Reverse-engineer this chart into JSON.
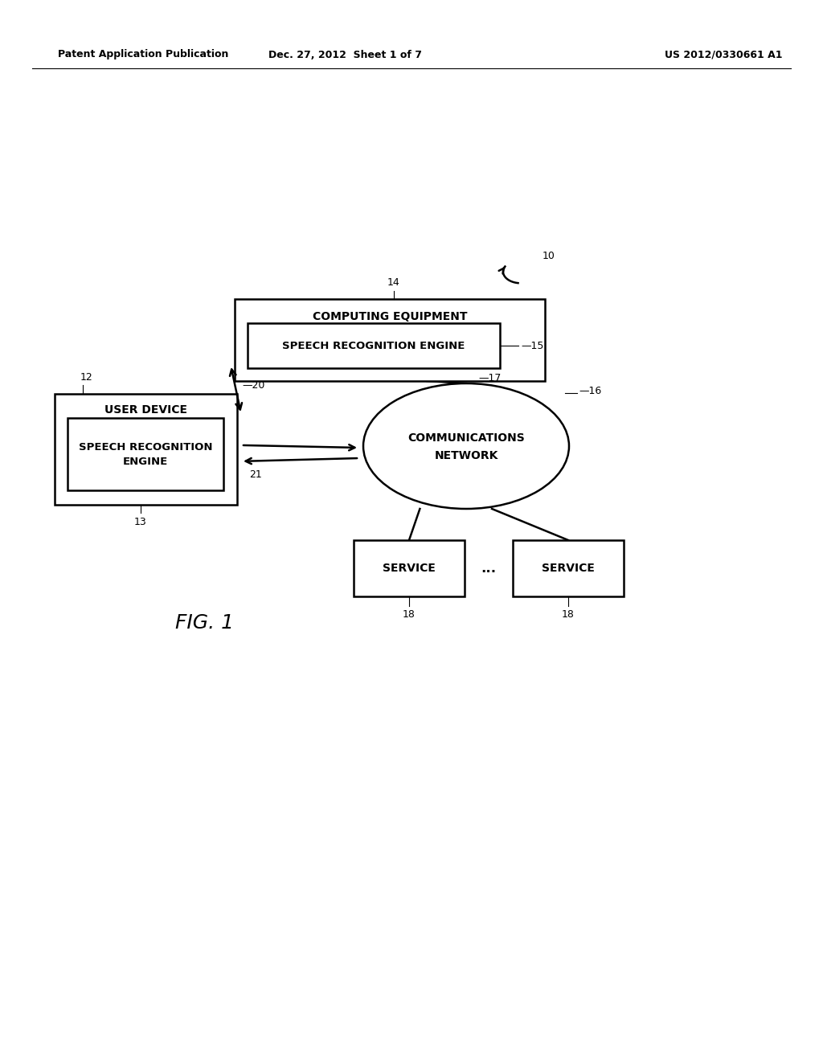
{
  "bg_color": "#ffffff",
  "text_color": "#000000",
  "header_left": "Patent Application Publication",
  "header_center": "Dec. 27, 2012  Sheet 1 of 7",
  "header_right": "US 2012/0330661 A1",
  "fig_label": "FIG. 1",
  "ref_10": "10",
  "ref_12": "12",
  "ref_13": "13",
  "ref_14": "14",
  "ref_15": "—15",
  "ref_16": "—16",
  "ref_17": "—17",
  "ref_18a": "18",
  "ref_18b": "18",
  "ref_20": "—20",
  "ref_21": "21",
  "computing_label1": "COMPUTING EQUIPMENT",
  "computing_label2": "SPEECH RECOGNITION ENGINE",
  "user_label1": "USER DEVICE",
  "user_label2": "SPEECH RECOGNITION",
  "user_label3": "ENGINE",
  "network_label1": "COMMUNICATIONS",
  "network_label2": "NETWORK",
  "service_label": "SERVICE",
  "dots_label": "...",
  "line_color": "#000000",
  "line_width": 1.8
}
